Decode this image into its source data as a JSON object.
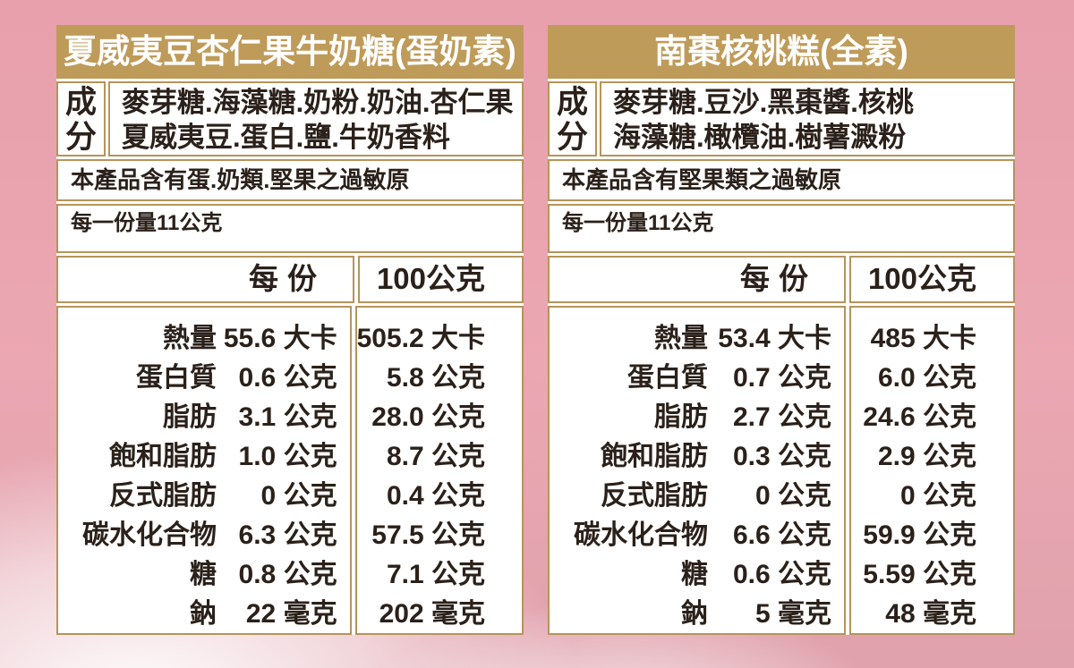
{
  "colors": {
    "gold_header": "#bf9b59",
    "gold_border": "#b6945a",
    "background_pink": "#e8a2ae",
    "text_ink": "#2b211a",
    "title_text": "#ffffff"
  },
  "panels": [
    {
      "title": "夏威夷豆杏仁果牛奶糖(蛋奶素)",
      "ingredients_label": "成分",
      "ingredients_lines": [
        "麥芽糖.海藻糖.奶粉.奶油.杏仁果",
        "夏威夷豆.蛋白.鹽.牛奶香料"
      ],
      "allergen": "本產品含有蛋.奶類.堅果之過敏原",
      "serving": "每一份量11公克",
      "col_per_serving": "每份",
      "col_per_100g": "100公克",
      "rows": [
        {
          "label": "熱量",
          "per_serving": "55.6 大卡",
          "per_100g": "505.2 大卡"
        },
        {
          "label": "蛋白質",
          "per_serving": "0.6 公克",
          "per_100g": "5.8 公克"
        },
        {
          "label": "脂肪",
          "per_serving": "3.1 公克",
          "per_100g": "28.0 公克"
        },
        {
          "label": "飽和脂肪",
          "per_serving": "1.0 公克",
          "per_100g": "8.7 公克"
        },
        {
          "label": "反式脂肪",
          "per_serving": "0 公克",
          "per_100g": "0.4 公克"
        },
        {
          "label": "碳水化合物",
          "per_serving": "6.3 公克",
          "per_100g": "57.5 公克"
        },
        {
          "label": "糖",
          "per_serving": "0.8 公克",
          "per_100g": "7.1 公克"
        },
        {
          "label": "鈉",
          "per_serving": "22 毫克",
          "per_100g": "202 毫克"
        }
      ]
    },
    {
      "title": "南棗核桃糕(全素)",
      "ingredients_label": "成分",
      "ingredients_lines": [
        "麥芽糖.豆沙.黑棗醬.核桃",
        "海藻糖.橄欖油.樹薯澱粉"
      ],
      "allergen": "本產品含有堅果類之過敏原",
      "serving": "每一份量11公克",
      "col_per_serving": "每份",
      "col_per_100g": "100公克",
      "rows": [
        {
          "label": "熱量",
          "per_serving": "53.4 大卡",
          "per_100g": "485 大卡"
        },
        {
          "label": "蛋白質",
          "per_serving": "0.7 公克",
          "per_100g": "6.0 公克"
        },
        {
          "label": "脂肪",
          "per_serving": "2.7 公克",
          "per_100g": "24.6 公克"
        },
        {
          "label": "飽和脂肪",
          "per_serving": "0.3 公克",
          "per_100g": "2.9 公克"
        },
        {
          "label": "反式脂肪",
          "per_serving": "0 公克",
          "per_100g": "0 公克"
        },
        {
          "label": "碳水化合物",
          "per_serving": "6.6 公克",
          "per_100g": "59.9 公克"
        },
        {
          "label": "糖",
          "per_serving": "0.6 公克",
          "per_100g": "5.59 公克"
        },
        {
          "label": "鈉",
          "per_serving": "5 毫克",
          "per_100g": "48 毫克"
        }
      ]
    }
  ]
}
